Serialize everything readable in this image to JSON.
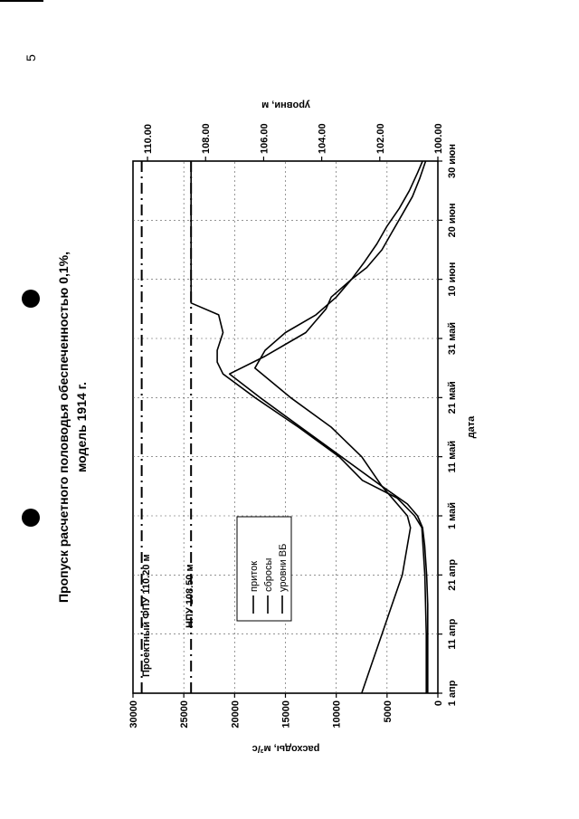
{
  "page_number": "5",
  "chart_data": {
    "type": "line",
    "title": "Пропуск расчетного половодья обеспеченностью 0,1%,",
    "subtitle": "модель 1914 г.",
    "xlabel": "дата",
    "ylabel_left": "расходы, м³/с",
    "ylabel_right": "уровни, м",
    "x_ticks": [
      "1 апр",
      "11 апр",
      "21 апр",
      "1 май",
      "11 май",
      "21 май",
      "31 май",
      "10 июн",
      "20 июн",
      "30 июн"
    ],
    "x_range_days": [
      0,
      90
    ],
    "y_left_ticks": [
      "0",
      "5000",
      "10000",
      "15000",
      "20000",
      "25000",
      "30000"
    ],
    "ylim_left": [
      0,
      30000
    ],
    "y_right_ticks": [
      "100.00",
      "102.00",
      "104.00",
      "106.00",
      "108.00",
      "110.00"
    ],
    "ylim_right": [
      100,
      110.5
    ],
    "grid": true,
    "legend": {
      "placement": "inside-left",
      "items": [
        "приток",
        "сбросы",
        "уровни ВБ"
      ]
    },
    "annotations": [
      {
        "text": "Проектный ФПУ 110.20 м",
        "level": 110.2
      },
      {
        "text": "НПУ 108.50 м",
        "level": 108.5
      }
    ],
    "series": [
      {
        "name": "приток",
        "axis": "left",
        "x": [
          0,
          5,
          10,
          15,
          20,
          25,
          28,
          30,
          32,
          35,
          40,
          45,
          50,
          54,
          57,
          59,
          61,
          63,
          65,
          67,
          70,
          72,
          75,
          78,
          81,
          84,
          87,
          90
        ],
        "values": [
          1000,
          1000,
          1000,
          1000,
          1100,
          1300,
          1500,
          2000,
          3000,
          5500,
          9500,
          13500,
          17500,
          20500,
          17000,
          15000,
          13000,
          12000,
          11000,
          10500,
          8500,
          7000,
          5500,
          4500,
          3500,
          2500,
          1800,
          1200
        ]
      },
      {
        "name": "сбросы",
        "axis": "left",
        "x": [
          0,
          5,
          10,
          15,
          20,
          25,
          28,
          30,
          32,
          35,
          40,
          45,
          50,
          55,
          58,
          61,
          64,
          67,
          70,
          73,
          76,
          79,
          82,
          85,
          88,
          90
        ],
        "values": [
          7500,
          6500,
          5500,
          4500,
          3500,
          3000,
          2700,
          3000,
          4000,
          5500,
          7500,
          10500,
          14500,
          18000,
          17000,
          15000,
          12000,
          10000,
          8500,
          7200,
          6000,
          5000,
          3800,
          2800,
          2000,
          1500
        ]
      },
      {
        "name": "уровни ВБ",
        "axis": "right",
        "x": [
          0,
          10,
          20,
          28,
          30,
          33,
          36,
          40,
          45,
          50,
          54,
          56,
          58,
          61,
          64,
          66,
          70,
          75,
          80,
          85,
          90
        ],
        "values": [
          100.4,
          100.4,
          100.45,
          100.55,
          100.8,
          101.4,
          102.6,
          103.4,
          104.8,
          106.3,
          107.4,
          107.6,
          107.6,
          107.4,
          107.55,
          108.5,
          108.5,
          108.5,
          108.5,
          108.5,
          108.5
        ]
      }
    ]
  }
}
